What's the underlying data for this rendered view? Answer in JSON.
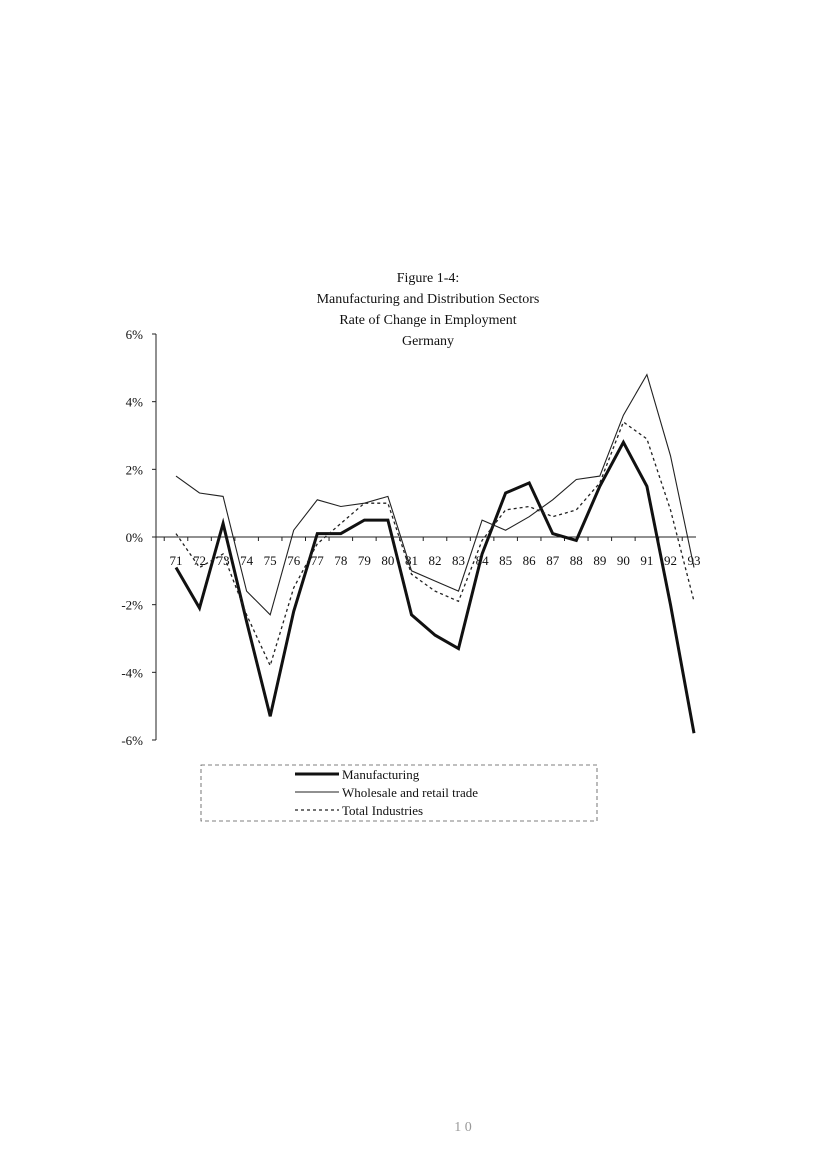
{
  "chart_data": {
    "type": "line",
    "title_lines": [
      "Figure 1-4:",
      "Manufacturing and Distribution Sectors",
      "Rate of Change in Employment",
      "Germany"
    ],
    "categories": [
      "71",
      "72",
      "73",
      "74",
      "75",
      "76",
      "77",
      "78",
      "79",
      "80",
      "81",
      "82",
      "83",
      "84",
      "85",
      "86",
      "87",
      "88",
      "89",
      "90",
      "91",
      "92",
      "93"
    ],
    "y_ticks": [
      "6%",
      "4%",
      "2%",
      "0%",
      "-2%",
      "-4%",
      "-6%"
    ],
    "ylim": [
      -6,
      6
    ],
    "y_unit": "%",
    "grid": false,
    "legend_position": "bottom",
    "series": [
      {
        "name": "Manufacturing",
        "style": "thick-solid",
        "values": [
          -0.9,
          -2.1,
          0.4,
          -2.5,
          -5.3,
          -2.2,
          0.1,
          0.1,
          0.5,
          0.5,
          -2.3,
          -2.9,
          -3.3,
          -0.5,
          1.3,
          1.6,
          0.1,
          -0.1,
          1.5,
          2.8,
          1.5,
          -2.0,
          -5.8
        ]
      },
      {
        "name": "Wholesale and retail trade",
        "style": "thin-solid",
        "values": [
          1.8,
          1.3,
          1.2,
          -1.6,
          -2.3,
          0.2,
          1.1,
          0.9,
          1.0,
          1.2,
          -1.0,
          -1.3,
          -1.6,
          0.5,
          0.2,
          0.6,
          1.1,
          1.7,
          1.8,
          3.6,
          4.8,
          2.4,
          -0.9
        ]
      },
      {
        "name": "Total Industries",
        "style": "dotted",
        "values": [
          0.1,
          -0.9,
          -0.5,
          -2.3,
          -3.8,
          -1.5,
          -0.2,
          0.4,
          1.0,
          1.0,
          -1.1,
          -1.6,
          -1.9,
          -0.1,
          0.8,
          0.9,
          0.6,
          0.8,
          1.6,
          3.4,
          2.9,
          0.8,
          -1.9
        ]
      }
    ]
  },
  "page_number": "1 0"
}
